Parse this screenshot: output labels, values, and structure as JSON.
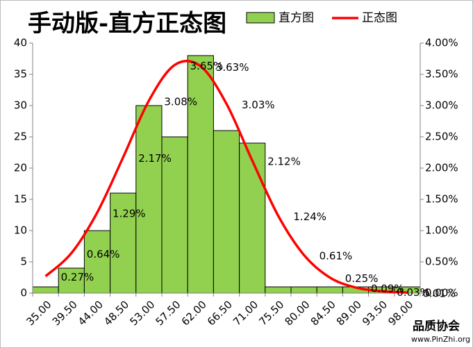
{
  "chart_data": {
    "type": "histogram-normal",
    "title": "手动版-直方正态图",
    "categories": [
      "35.00",
      "39.50",
      "44.00",
      "48.50",
      "53.00",
      "57.50",
      "62.00",
      "66.50",
      "71.00",
      "75.50",
      "80.00",
      "84.50",
      "89.00",
      "93.50",
      "98.00"
    ],
    "series": [
      {
        "name": "直方图",
        "color": "#92d050",
        "values": [
          1,
          4,
          10,
          16,
          30,
          25,
          38,
          26,
          24,
          1,
          1,
          1,
          1,
          1,
          1
        ]
      },
      {
        "name": "正态图",
        "color": "#ff0000",
        "axis": "y2",
        "values": [
          0.27,
          0.64,
          1.29,
          2.17,
          3.08,
          3.65,
          3.63,
          3.03,
          2.12,
          1.24,
          0.61,
          0.25,
          0.09,
          0.03,
          0.01
        ],
        "value_labels": [
          "0.27%",
          "0.64%",
          "1.29%",
          "2.17%",
          "3.08%",
          "3.65%",
          "3.63%",
          "3.03%",
          "2.12%",
          "1.24%",
          "0.61%",
          "0.25%",
          "0.09%",
          "0.03%",
          "0.01%"
        ]
      }
    ],
    "ylim": [
      0,
      40
    ],
    "yticks": [
      0,
      5,
      10,
      15,
      20,
      25,
      30,
      35,
      40
    ],
    "y2lim": [
      0,
      4
    ],
    "y2ticks": [
      {
        "value": 0,
        "label": "0.00%"
      },
      {
        "value": 0.5,
        "label": "0.50%"
      },
      {
        "value": 1,
        "label": "1.00%"
      },
      {
        "value": 1.5,
        "label": "1.50%"
      },
      {
        "value": 2,
        "label": "2.00%"
      },
      {
        "value": 2.5,
        "label": "2.50%"
      },
      {
        "value": 3,
        "label": "3.00%"
      },
      {
        "value": 3.5,
        "label": "3.50%"
      },
      {
        "value": 4,
        "label": "4.00%"
      }
    ],
    "legend": "top",
    "watermark": {
      "name": "品质协会",
      "url": "www.PinZhi.org"
    }
  }
}
